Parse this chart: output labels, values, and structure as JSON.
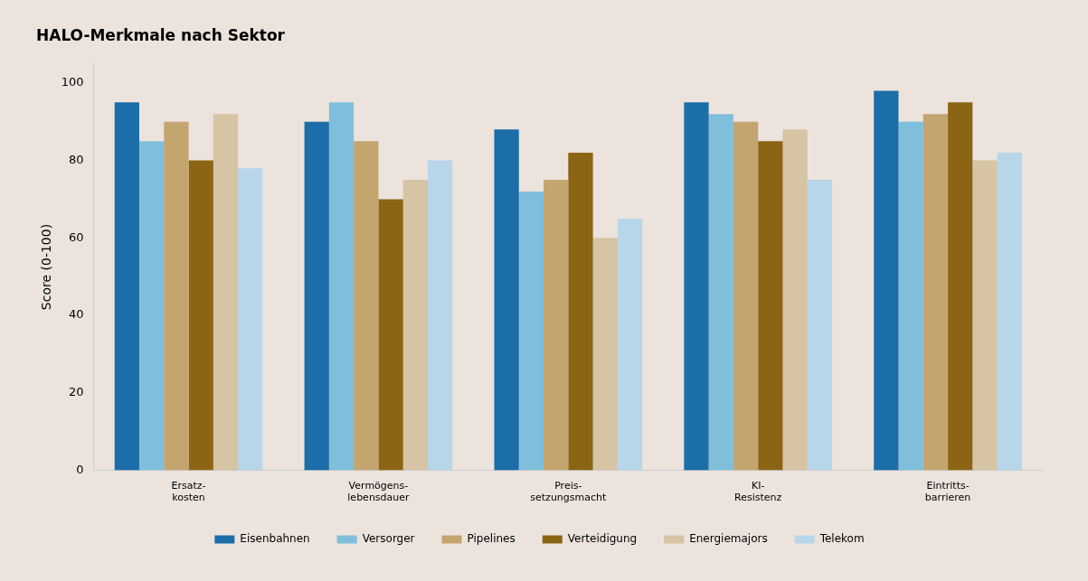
{
  "chart_data": {
    "type": "bar",
    "title": "HALO-Merkmale nach Sektor",
    "ylabel": "Score (0-100)",
    "categories": [
      "Ersatz-\nkosten",
      "Vermögens-\nlebensdauer",
      "Preis-\nsetzungsmacht",
      "KI-\nResistenz",
      "Eintritts-\nbarrieren"
    ],
    "series": [
      {
        "name": "Eisenbahnen",
        "color": "#1c6ea8",
        "values": [
          95,
          90,
          88,
          95,
          98
        ]
      },
      {
        "name": "Versorger",
        "color": "#7fbfdc",
        "values": [
          85,
          95,
          72,
          92,
          90
        ]
      },
      {
        "name": "Pipelines",
        "color": "#c4a46f",
        "values": [
          90,
          85,
          75,
          90,
          92
        ]
      },
      {
        "name": "Verteidigung",
        "color": "#8b6514",
        "values": [
          80,
          70,
          82,
          85,
          95
        ]
      },
      {
        "name": "Energiemajors",
        "color": "#d6c4a4",
        "values": [
          92,
          75,
          60,
          88,
          80
        ]
      },
      {
        "name": "Telekom",
        "color": "#b8d6ea",
        "values": [
          78,
          80,
          65,
          75,
          82
        ]
      }
    ],
    "ylim": [
      0,
      105
    ],
    "yticks": [
      0,
      20,
      40,
      60,
      80,
      100
    ],
    "grid": false,
    "legend": "bottom"
  }
}
